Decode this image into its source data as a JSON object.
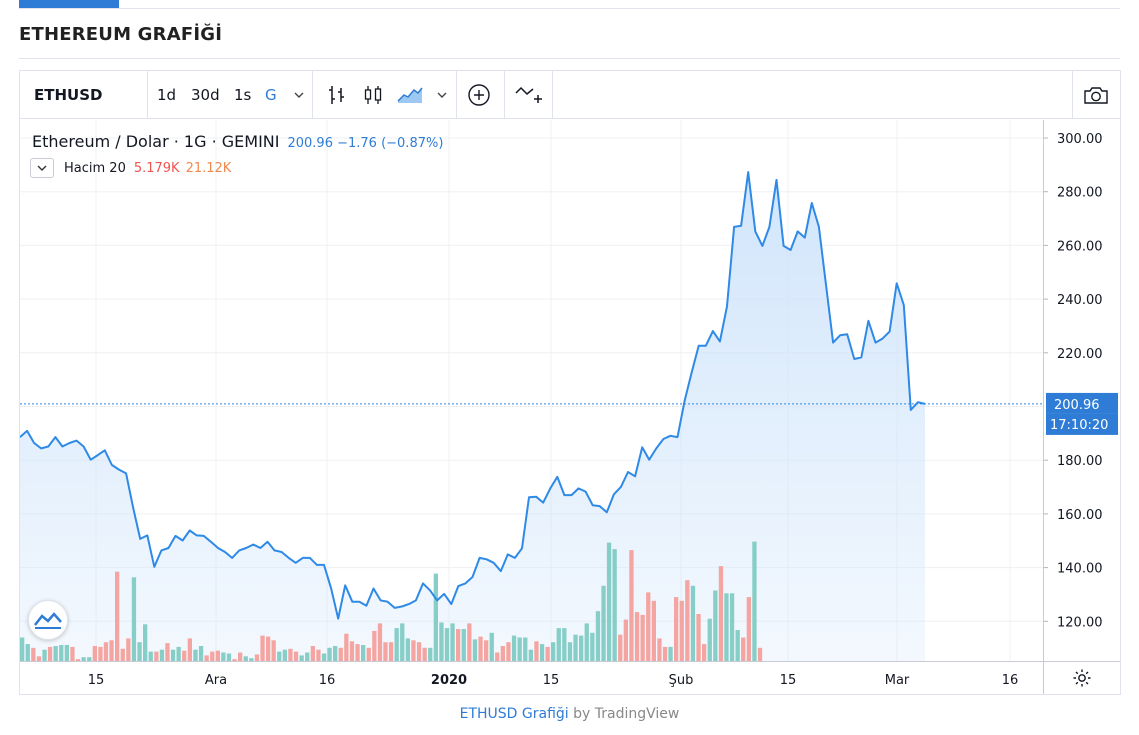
{
  "page": {
    "title": "ETHEREUM GRAFİĞİ"
  },
  "toolbar": {
    "symbol": "ETHUSD",
    "intervals": [
      "1d",
      "30d",
      "1s",
      "G"
    ],
    "icons": [
      "bars-icon",
      "candles-icon",
      "area-icon",
      "compare-icon",
      "indicators-icon",
      "camera-icon"
    ]
  },
  "legend": {
    "name": "Ethereum / Dolar · 1G · GEMINI",
    "values": "200.96 −1.76 (−0.87%)",
    "volume_label": "Hacim 20",
    "volume_value": "5.179K",
    "volume_ma": "21.12K"
  },
  "colors": {
    "line": "#2e8ae6",
    "fill": "#cfe4fb",
    "up_volume": "#80cbc4",
    "down_volume": "#f4a09c",
    "accent": "#2e7cd6"
  },
  "footer": {
    "link": "ETHUSD Grafiği",
    "by": " by TradingView"
  },
  "chart_data": {
    "type": "area",
    "ylim": [
      110,
      305
    ],
    "y_ticks": [
      "300.00",
      "280.00",
      "260.00",
      "240.00",
      "220.00",
      "180.00",
      "160.00",
      "140.00",
      "120.00"
    ],
    "x_ticks": [
      "15",
      "Ara",
      "16",
      "2020",
      "15",
      "Şub",
      "15",
      "Mar",
      "16"
    ],
    "last_price_label": "200.96",
    "countdown_label": "17:10:20",
    "last_price": 200.96,
    "prices": [
      188.6,
      190.9,
      186.4,
      184.4,
      185.1,
      188.6,
      185.1,
      186.4,
      187.3,
      185.1,
      180.2,
      181.9,
      183.7,
      178.2,
      176.5,
      175.1,
      162.4,
      150.7,
      152.0,
      140.3,
      146.4,
      147.3,
      151.8,
      150.1,
      153.8,
      152.0,
      151.8,
      149.6,
      147.3,
      145.8,
      143.6,
      146.4,
      147.3,
      148.6,
      147.3,
      149.6,
      146.4,
      145.8,
      143.6,
      141.8,
      143.6,
      143.6,
      141.0,
      141.0,
      132.3,
      121.0,
      133.4,
      127.3,
      127.3,
      125.8,
      132.2,
      127.8,
      127.3,
      125.0,
      125.5,
      126.4,
      127.8,
      134.1,
      131.5,
      127.8,
      130.2,
      126.4,
      133.1,
      134.1,
      136.5,
      143.6,
      143.1,
      141.8,
      138.7,
      144.9,
      143.6,
      147.2,
      166.2,
      166.4,
      164.2,
      169.5,
      173.8,
      167.0,
      167.0,
      169.5,
      168.3,
      163.2,
      162.9,
      160.6,
      167.3,
      170.1,
      175.6,
      174.0,
      184.8,
      180.2,
      184.4,
      187.9,
      189.1,
      188.6,
      202.1,
      212.6,
      222.6,
      222.6,
      228.1,
      224.2,
      237.3,
      266.9,
      267.3,
      287.3,
      265.2,
      259.8,
      266.9,
      284.4,
      259.8,
      258.3,
      265.2,
      262.9,
      275.8,
      266.9,
      245.3,
      223.8,
      226.5,
      226.9,
      217.7,
      218.3,
      231.9,
      223.8,
      225.3,
      227.9,
      245.9,
      237.8,
      198.7,
      201.6,
      200.96
    ],
    "volume_bars": [
      {
        "v": 25,
        "c": "up"
      },
      {
        "v": 18,
        "c": "up"
      },
      {
        "v": 14,
        "c": "down"
      },
      {
        "v": 5,
        "c": "down"
      },
      {
        "v": 12,
        "c": "up"
      },
      {
        "v": 15,
        "c": "down"
      },
      {
        "v": 16,
        "c": "up"
      },
      {
        "v": 17,
        "c": "up"
      },
      {
        "v": 17,
        "c": "up"
      },
      {
        "v": 15,
        "c": "down"
      },
      {
        "v": 2,
        "c": "down"
      },
      {
        "v": 4,
        "c": "up"
      },
      {
        "v": 4,
        "c": "up"
      },
      {
        "v": 16,
        "c": "down"
      },
      {
        "v": 15,
        "c": "down"
      },
      {
        "v": 20,
        "c": "down"
      },
      {
        "v": 22,
        "c": "down"
      },
      {
        "v": 95,
        "c": "down"
      },
      {
        "v": 13,
        "c": "down"
      },
      {
        "v": 24,
        "c": "down"
      },
      {
        "v": 89,
        "c": "up"
      },
      {
        "v": 20,
        "c": "up"
      },
      {
        "v": 39,
        "c": "up"
      },
      {
        "v": 10,
        "c": "up"
      },
      {
        "v": 10,
        "c": "down"
      },
      {
        "v": 12,
        "c": "up"
      },
      {
        "v": 19,
        "c": "down"
      },
      {
        "v": 12,
        "c": "up"
      },
      {
        "v": 15,
        "c": "up"
      },
      {
        "v": 11,
        "c": "down"
      },
      {
        "v": 24,
        "c": "down"
      },
      {
        "v": 12,
        "c": "up"
      },
      {
        "v": 16,
        "c": "up"
      },
      {
        "v": 6,
        "c": "down"
      },
      {
        "v": 10,
        "c": "down"
      },
      {
        "v": 11,
        "c": "down"
      },
      {
        "v": 9,
        "c": "up"
      },
      {
        "v": 8,
        "c": "up"
      },
      {
        "v": 2,
        "c": "down"
      },
      {
        "v": 9,
        "c": "down"
      },
      {
        "v": 5,
        "c": "up"
      },
      {
        "v": 3,
        "c": "up"
      },
      {
        "v": 7,
        "c": "down"
      },
      {
        "v": 27,
        "c": "down"
      },
      {
        "v": 26,
        "c": "down"
      },
      {
        "v": 22,
        "c": "down"
      },
      {
        "v": 10,
        "c": "up"
      },
      {
        "v": 12,
        "c": "up"
      },
      {
        "v": 13,
        "c": "down"
      },
      {
        "v": 10,
        "c": "down"
      },
      {
        "v": 6,
        "c": "up"
      },
      {
        "v": 9,
        "c": "up"
      },
      {
        "v": 16,
        "c": "down"
      },
      {
        "v": 12,
        "c": "down"
      },
      {
        "v": 8,
        "c": "up"
      },
      {
        "v": 14,
        "c": "up"
      },
      {
        "v": 16,
        "c": "up"
      },
      {
        "v": 14,
        "c": "down"
      },
      {
        "v": 29,
        "c": "down"
      },
      {
        "v": 21,
        "c": "down"
      },
      {
        "v": 18,
        "c": "down"
      },
      {
        "v": 17,
        "c": "up"
      },
      {
        "v": 14,
        "c": "down"
      },
      {
        "v": 32,
        "c": "down"
      },
      {
        "v": 40,
        "c": "down"
      },
      {
        "v": 20,
        "c": "down"
      },
      {
        "v": 20,
        "c": "down"
      },
      {
        "v": 35,
        "c": "up"
      },
      {
        "v": 40,
        "c": "up"
      },
      {
        "v": 24,
        "c": "up"
      },
      {
        "v": 22,
        "c": "down"
      },
      {
        "v": 20,
        "c": "down"
      },
      {
        "v": 14,
        "c": "down"
      },
      {
        "v": 14,
        "c": "up"
      },
      {
        "v": 93,
        "c": "up"
      },
      {
        "v": 41,
        "c": "up"
      },
      {
        "v": 35,
        "c": "up"
      },
      {
        "v": 40,
        "c": "up"
      },
      {
        "v": 34,
        "c": "down"
      },
      {
        "v": 34,
        "c": "up"
      },
      {
        "v": 40,
        "c": "down"
      },
      {
        "v": 23,
        "c": "up"
      },
      {
        "v": 26,
        "c": "down"
      },
      {
        "v": 22,
        "c": "down"
      },
      {
        "v": 30,
        "c": "up"
      },
      {
        "v": 9,
        "c": "down"
      },
      {
        "v": 16,
        "c": "down"
      },
      {
        "v": 20,
        "c": "down"
      },
      {
        "v": 27,
        "c": "up"
      },
      {
        "v": 25,
        "c": "up"
      },
      {
        "v": 25,
        "c": "up"
      },
      {
        "v": 12,
        "c": "up"
      },
      {
        "v": 21,
        "c": "down"
      },
      {
        "v": 18,
        "c": "up"
      },
      {
        "v": 15,
        "c": "down"
      },
      {
        "v": 20,
        "c": "up"
      },
      {
        "v": 35,
        "c": "up"
      },
      {
        "v": 35,
        "c": "up"
      },
      {
        "v": 20,
        "c": "up"
      },
      {
        "v": 28,
        "c": "up"
      },
      {
        "v": 27,
        "c": "up"
      },
      {
        "v": 40,
        "c": "up"
      },
      {
        "v": 30,
        "c": "up"
      },
      {
        "v": 53,
        "c": "up"
      },
      {
        "v": 80,
        "c": "up"
      },
      {
        "v": 126,
        "c": "up"
      },
      {
        "v": 119,
        "c": "up"
      },
      {
        "v": 28,
        "c": "down"
      },
      {
        "v": 44,
        "c": "down"
      },
      {
        "v": 118,
        "c": "down"
      },
      {
        "v": 52,
        "c": "down"
      },
      {
        "v": 49,
        "c": "down"
      },
      {
        "v": 73,
        "c": "down"
      },
      {
        "v": 64,
        "c": "down"
      },
      {
        "v": 24,
        "c": "down"
      },
      {
        "v": 15,
        "c": "down"
      },
      {
        "v": 15,
        "c": "up"
      },
      {
        "v": 68,
        "c": "down"
      },
      {
        "v": 64,
        "c": "down"
      },
      {
        "v": 86,
        "c": "down"
      },
      {
        "v": 80,
        "c": "up"
      },
      {
        "v": 50,
        "c": "down"
      },
      {
        "v": 18,
        "c": "down"
      },
      {
        "v": 45,
        "c": "up"
      },
      {
        "v": 75,
        "c": "up"
      },
      {
        "v": 101,
        "c": "down"
      },
      {
        "v": 72,
        "c": "up"
      },
      {
        "v": 72,
        "c": "up"
      },
      {
        "v": 33,
        "c": "up"
      },
      {
        "v": 25,
        "c": "down"
      },
      {
        "v": 68,
        "c": "down"
      },
      {
        "v": 127,
        "c": "up"
      },
      {
        "v": 14,
        "c": "down"
      }
    ]
  }
}
